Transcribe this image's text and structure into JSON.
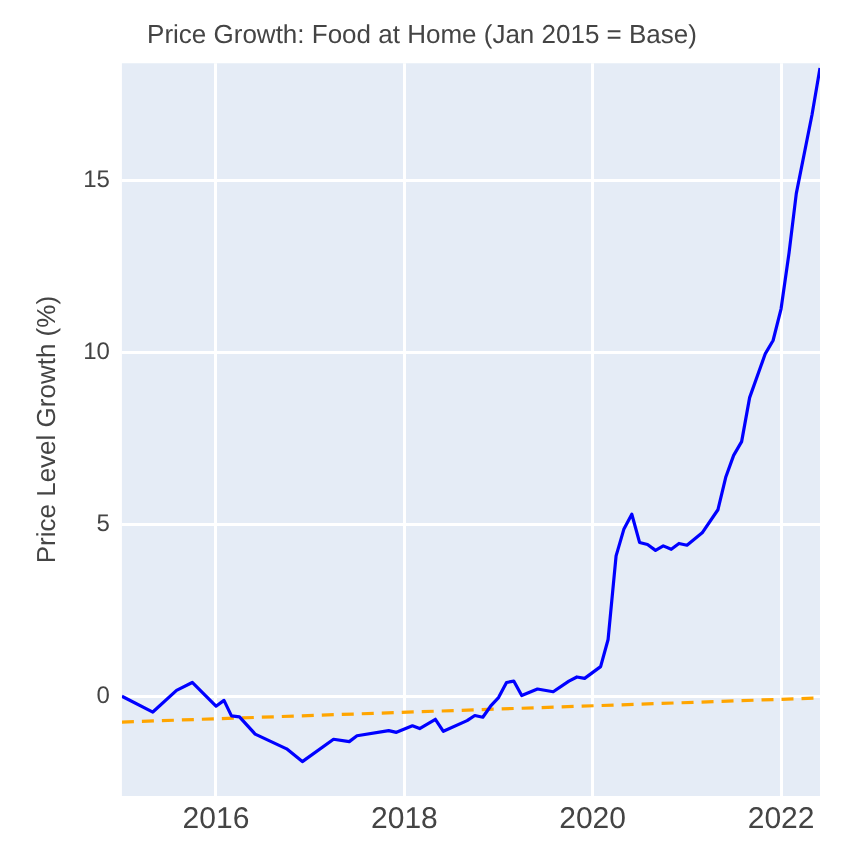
{
  "chart_data": {
    "type": "line",
    "title": "Price Growth: Food at Home (Jan 2015 = Base)",
    "ylabel": "Price Level Growth (%)",
    "xlim": [
      "2015-01",
      "2022-06"
    ],
    "xticks": [
      "2016",
      "2018",
      "2020",
      "2022"
    ],
    "ylim": [
      -2.9,
      18.4
    ],
    "yticks": [
      0,
      5,
      10,
      15
    ],
    "grid": true,
    "legend": false,
    "series": [
      {
        "color": "#0000ff",
        "line_style": "solid",
        "x": [
          "2015-01",
          "2015-05",
          "2015-08",
          "2015-10",
          "2016-01",
          "2016-02",
          "2016-03",
          "2016-04",
          "2016-06",
          "2016-10",
          "2016-12",
          "2017-04",
          "2017-06",
          "2017-07",
          "2017-11",
          "2017-12",
          "2018-02",
          "2018-03",
          "2018-05",
          "2018-06",
          "2018-09",
          "2018-10",
          "2018-11",
          "2018-12",
          "2019-01",
          "2019-02",
          "2019-03",
          "2019-04",
          "2019-06",
          "2019-08",
          "2019-10",
          "2019-11",
          "2019-12",
          "2020-02",
          "2020-03",
          "2020-04",
          "2020-05",
          "2020-06",
          "2020-07",
          "2020-08",
          "2020-09",
          "2020-10",
          "2020-11",
          "2020-12",
          "2021-01",
          "2021-03",
          "2021-05",
          "2021-06",
          "2021-07",
          "2021-08",
          "2021-09",
          "2021-11",
          "2021-12",
          "2022-01",
          "2022-02",
          "2022-03",
          "2022-05",
          "2022-06"
        ],
        "values": [
          0,
          -0.46,
          0.17,
          0.4,
          -0.29,
          -0.12,
          -0.57,
          -0.6,
          -1.1,
          -1.53,
          -1.9,
          -1.25,
          -1.32,
          -1.15,
          -1.0,
          -1.05,
          -0.86,
          -0.94,
          -0.67,
          -1.02,
          -0.71,
          -0.56,
          -0.61,
          -0.29,
          -0.04,
          0.4,
          0.44,
          0.02,
          0.21,
          0.13,
          0.44,
          0.56,
          0.52,
          0.86,
          1.65,
          4.08,
          4.85,
          5.29,
          4.47,
          4.41,
          4.24,
          4.37,
          4.27,
          4.44,
          4.39,
          4.75,
          5.42,
          6.38,
          7.0,
          7.4,
          8.68,
          9.96,
          10.34,
          11.26,
          12.89,
          14.61,
          16.9,
          18.26
        ]
      },
      {
        "color": "#ffa500",
        "line_style": "dashed",
        "x": [
          "2015-01",
          "2022-06"
        ],
        "values": [
          -0.75,
          -0.05
        ]
      }
    ]
  }
}
